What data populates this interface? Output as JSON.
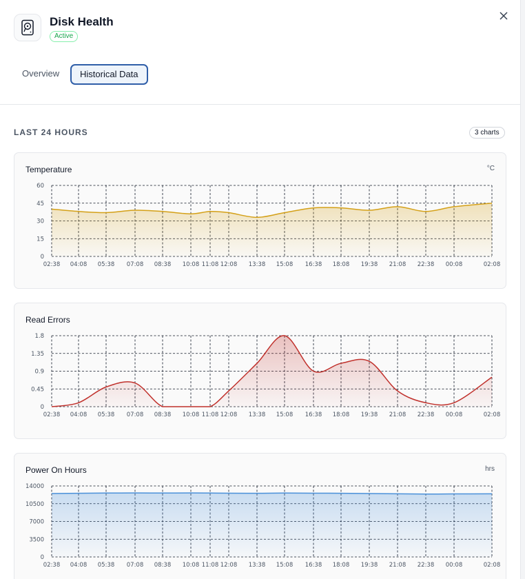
{
  "header": {
    "title": "Disk Health",
    "status_badge": "Active",
    "icon": "hard-drive-icon",
    "close_icon": "close-icon"
  },
  "tabs": [
    {
      "label": "Overview",
      "active": false
    },
    {
      "label": "Historical Data",
      "active": true
    }
  ],
  "section": {
    "label": "LAST 24 HOURS",
    "count": "3 charts"
  },
  "colors": {
    "accent": "#2f5ea8",
    "temperature": "#d4a017",
    "read_errors": "#c0302b",
    "power_on_hours": "#4a90d9"
  },
  "x_ticks": [
    "02:38",
    "04:08",
    "05:38",
    "07:08",
    "08:38",
    "10:08",
    "11:08",
    "12:08",
    "13:38",
    "15:08",
    "16:38",
    "18:08",
    "19:38",
    "21:08",
    "22:38",
    "00:08",
    "02:08"
  ],
  "chart_data": [
    {
      "type": "area",
      "title": "Temperature",
      "unit": "°C",
      "ylim": [
        0,
        60
      ],
      "y_ticks": [
        "0",
        "15",
        "30",
        "45",
        "60"
      ],
      "grid": true,
      "x": [
        "02:38",
        "04:08",
        "05:38",
        "07:08",
        "08:38",
        "10:08",
        "11:08",
        "12:08",
        "13:38",
        "15:08",
        "16:38",
        "18:08",
        "19:38",
        "21:08",
        "22:38",
        "00:08",
        "02:08"
      ],
      "series": [
        {
          "values": [
            40,
            38,
            37,
            39,
            38,
            36,
            38,
            37,
            33,
            37,
            41,
            41,
            39,
            42,
            38,
            42,
            45
          ]
        }
      ]
    },
    {
      "type": "area",
      "title": "Read Errors",
      "unit": "",
      "ylim": [
        0,
        1.8
      ],
      "y_ticks": [
        "0",
        "0.45",
        "0.9",
        "1.35",
        "1.8"
      ],
      "grid": true,
      "x": [
        "02:38",
        "04:08",
        "05:38",
        "07:08",
        "08:38",
        "10:08",
        "11:08",
        "12:08",
        "13:38",
        "15:08",
        "16:38",
        "18:08",
        "19:38",
        "21:08",
        "22:38",
        "00:08",
        "02:08"
      ],
      "series": [
        {
          "values": [
            0,
            0.1,
            0.5,
            0.6,
            0,
            0,
            0,
            0.4,
            1.1,
            1.8,
            0.9,
            1.1,
            1.15,
            0.4,
            0.1,
            0.1,
            0.75
          ]
        }
      ]
    },
    {
      "type": "area",
      "title": "Power On Hours",
      "unit": "hrs",
      "ylim": [
        0,
        14000
      ],
      "y_ticks": [
        "0",
        "3500",
        "7000",
        "10500",
        "14000"
      ],
      "grid": true,
      "x": [
        "02:38",
        "04:08",
        "05:38",
        "07:08",
        "08:38",
        "10:08",
        "11:08",
        "12:08",
        "13:38",
        "15:08",
        "16:38",
        "18:08",
        "19:38",
        "21:08",
        "22:38",
        "00:08",
        "02:08"
      ],
      "series": [
        {
          "values": [
            12500,
            12550,
            12600,
            12620,
            12600,
            12620,
            12600,
            12580,
            12550,
            12600,
            12580,
            12560,
            12500,
            12450,
            12400,
            12430,
            12450
          ]
        }
      ]
    }
  ]
}
